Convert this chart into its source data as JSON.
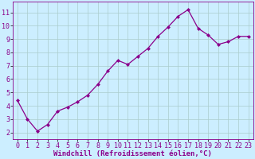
{
  "x": [
    0,
    1,
    2,
    3,
    4,
    5,
    6,
    7,
    8,
    9,
    10,
    11,
    12,
    13,
    14,
    15,
    16,
    17,
    18,
    19,
    20,
    21,
    22,
    23
  ],
  "y": [
    4.4,
    3.0,
    2.1,
    2.6,
    3.6,
    3.9,
    4.3,
    4.8,
    5.6,
    6.6,
    7.4,
    7.1,
    7.7,
    8.3,
    9.2,
    9.9,
    10.7,
    11.2,
    9.8,
    9.3,
    8.6,
    8.8,
    9.2,
    9.2
  ],
  "line_color": "#8B008B",
  "marker": "D",
  "marker_size": 2.0,
  "bg_color": "#cceeff",
  "grid_color": "#aacccc",
  "ylabel_ticks": [
    2,
    3,
    4,
    5,
    6,
    7,
    8,
    9,
    10,
    11
  ],
  "xlabel": "Windchill (Refroidissement éolien,°C)",
  "ylim": [
    1.5,
    11.8
  ],
  "xlim": [
    -0.5,
    23.5
  ],
  "tick_color": "#8B008B",
  "tick_fontsize": 6.0,
  "xlabel_fontsize": 6.5,
  "linewidth": 0.9
}
